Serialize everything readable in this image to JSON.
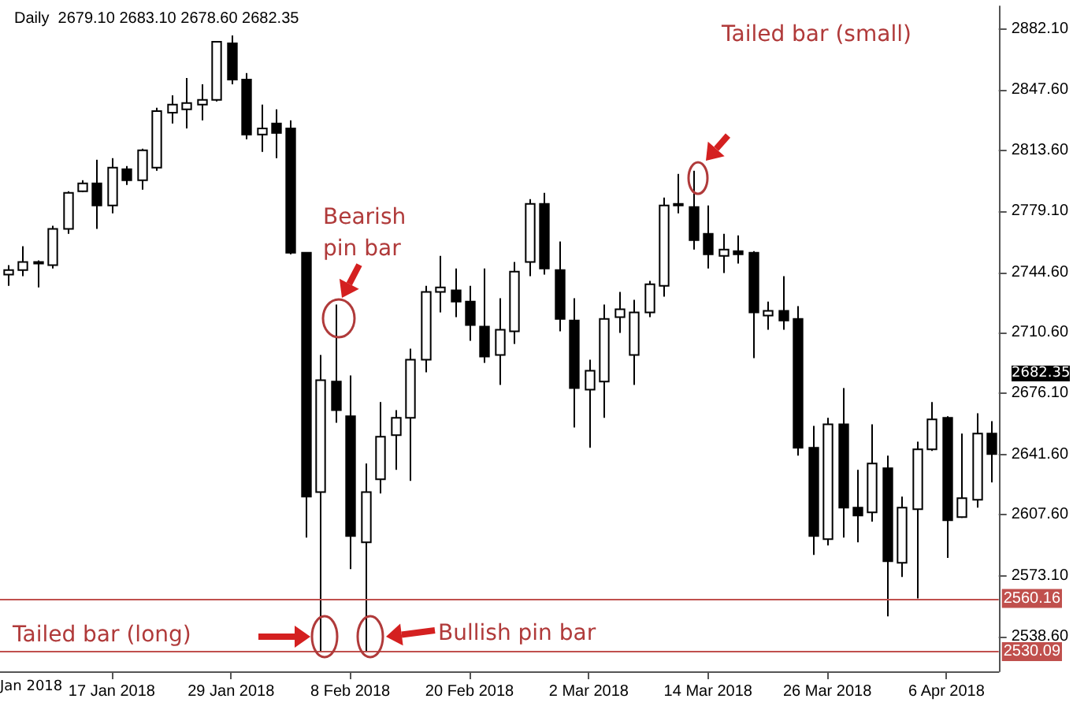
{
  "chart_data": {
    "type": "candlestick",
    "title": "Daily  2679.10 2683.10 2678.60 2682.35",
    "categories": [
      null,
      null,
      null,
      null,
      null,
      null,
      null,
      "17 Jan 2018",
      null,
      null,
      null,
      null,
      null,
      null,
      null,
      "29 Jan 2018",
      null,
      null,
      null,
      null,
      null,
      null,
      null,
      "8 Feb 2018",
      null,
      null,
      null,
      null,
      null,
      null,
      null,
      "20 Feb 2018",
      null,
      null,
      null,
      null,
      null,
      null,
      null,
      "2 Mar 2018",
      null,
      null,
      null,
      null,
      null,
      null,
      null,
      "14 Mar 2018",
      null,
      null,
      null,
      null,
      null,
      null,
      null,
      "26 Mar 2018",
      null,
      null,
      null,
      null,
      null,
      null,
      null,
      "6 Apr 2018",
      null,
      null,
      null
    ],
    "ohlc": [
      [
        2743.3,
        2748.6,
        2737.0,
        2745.9
      ],
      [
        2745.9,
        2759.3,
        2742.4,
        2750.4
      ],
      [
        2749.5,
        2751.3,
        2736.1,
        2750.4
      ],
      [
        2748.6,
        2770.9,
        2746.8,
        2769.1
      ],
      [
        2769.1,
        2790.4,
        2766.4,
        2789.5
      ],
      [
        2790.4,
        2796.7,
        2790.0,
        2794.9
      ],
      [
        2794.9,
        2808.2,
        2769.1,
        2782.4
      ],
      [
        2782.4,
        2809.1,
        2778.0,
        2803.8
      ],
      [
        2802.9,
        2804.7,
        2794.0,
        2796.7
      ],
      [
        2796.7,
        2814.5,
        2791.3,
        2813.6
      ],
      [
        2803.8,
        2837.6,
        2802.0,
        2835.8
      ],
      [
        2834.9,
        2844.7,
        2828.7,
        2839.4
      ],
      [
        2836.7,
        2854.5,
        2826.0,
        2840.3
      ],
      [
        2839.4,
        2850.9,
        2830.5,
        2842.1
      ],
      [
        2842.1,
        2875.4,
        2841.2,
        2875.0
      ],
      [
        2874.1,
        2878.5,
        2850.9,
        2853.6
      ],
      [
        2853.6,
        2857.2,
        2819.8,
        2822.5
      ],
      [
        2822.5,
        2839.4,
        2812.7,
        2826.0
      ],
      [
        2828.7,
        2836.7,
        2809.1,
        2823.4
      ],
      [
        2826.0,
        2830.5,
        2754.8,
        2755.7
      ],
      [
        2755.7,
        2755.7,
        2594.6,
        2617.8
      ],
      [
        2620.4,
        2697.9,
        2530.1,
        2683.6
      ],
      [
        2682.8,
        2726.4,
        2659.6,
        2666.7
      ],
      [
        2663.2,
        2686.3,
        2576.8,
        2595.5
      ],
      [
        2591.9,
        2636.5,
        2530.1,
        2620.4
      ],
      [
        2627.6,
        2671.2,
        2619.6,
        2651.6
      ],
      [
        2652.5,
        2666.7,
        2632.9,
        2662.3
      ],
      [
        2662.3,
        2701.4,
        2626.7,
        2695.2
      ],
      [
        2695.2,
        2737.0,
        2688.1,
        2733.5
      ],
      [
        2733.5,
        2753.9,
        2721.9,
        2736.1
      ],
      [
        2734.4,
        2746.8,
        2719.2,
        2728.1
      ],
      [
        2728.1,
        2737.0,
        2705.9,
        2714.8
      ],
      [
        2713.9,
        2746.8,
        2693.4,
        2697.0
      ],
      [
        2697.9,
        2729.9,
        2680.9,
        2712.1
      ],
      [
        2711.2,
        2750.4,
        2704.1,
        2745.0
      ],
      [
        2750.4,
        2786.0,
        2742.4,
        2783.3
      ],
      [
        2783.3,
        2789.5,
        2743.3,
        2746.8
      ],
      [
        2745.9,
        2762.0,
        2711.2,
        2718.3
      ],
      [
        2717.4,
        2729.9,
        2656.9,
        2679.2
      ],
      [
        2678.3,
        2695.2,
        2645.4,
        2689.0
      ],
      [
        2682.8,
        2726.4,
        2662.3,
        2718.3
      ],
      [
        2719.2,
        2733.5,
        2710.3,
        2723.7
      ],
      [
        2697.9,
        2729.0,
        2680.9,
        2721.9
      ],
      [
        2721.9,
        2739.7,
        2719.2,
        2737.9
      ],
      [
        2737.0,
        2786.9,
        2730.8,
        2782.4
      ],
      [
        2783.3,
        2800.2,
        2778.0,
        2782.4
      ],
      [
        2781.5,
        2802.0,
        2757.5,
        2762.8
      ],
      [
        2766.4,
        2782.4,
        2746.8,
        2754.8
      ],
      [
        2753.9,
        2766.4,
        2744.2,
        2757.5
      ],
      [
        2756.6,
        2765.5,
        2749.5,
        2754.8
      ],
      [
        2755.7,
        2756.6,
        2696.1,
        2721.9
      ],
      [
        2720.1,
        2728.1,
        2712.1,
        2722.8
      ],
      [
        2722.8,
        2742.4,
        2712.1,
        2717.4
      ],
      [
        2718.3,
        2725.5,
        2640.9,
        2645.4
      ],
      [
        2645.4,
        2657.8,
        2584.8,
        2595.5
      ],
      [
        2593.7,
        2662.3,
        2590.2,
        2658.7
      ],
      [
        2658.7,
        2679.2,
        2594.6,
        2611.5
      ],
      [
        2611.5,
        2632.9,
        2591.9,
        2607.1
      ],
      [
        2608.9,
        2658.7,
        2603.6,
        2636.5
      ],
      [
        2633.8,
        2640.9,
        2550.1,
        2581.3
      ],
      [
        2580.4,
        2617.8,
        2572.4,
        2611.5
      ],
      [
        2610.7,
        2648.9,
        2560.2,
        2644.5
      ],
      [
        2644.5,
        2671.2,
        2643.6,
        2661.4
      ],
      [
        2662.3,
        2663.2,
        2583.1,
        2604.4
      ],
      [
        2606.2,
        2653.4,
        2605.8,
        2616.9
      ],
      [
        2616.0,
        2664.9,
        2611.5,
        2653.4
      ],
      [
        2653.4,
        2660.5,
        2625.8,
        2641.8
      ]
    ],
    "ylim": [
      2519,
      2895
    ],
    "yticks": [
      {
        "value": 2882.1,
        "label": "2882.10"
      },
      {
        "value": 2847.6,
        "label": "2847.60"
      },
      {
        "value": 2813.6,
        "label": "2813.60"
      },
      {
        "value": 2779.1,
        "label": "2779.10"
      },
      {
        "value": 2744.6,
        "label": "2744.60"
      },
      {
        "value": 2710.6,
        "label": "2710.60"
      },
      {
        "value": 2676.1,
        "label": "2676.10"
      },
      {
        "value": 2641.6,
        "label": "2641.60"
      },
      {
        "value": 2607.6,
        "label": "2607.60"
      },
      {
        "value": 2573.1,
        "label": "2573.10"
      },
      {
        "value": 2538.6,
        "label": "2538.60"
      }
    ],
    "ref_lines": [
      {
        "axis": "y",
        "value": 2560.16,
        "label": "2560.16",
        "color": "#c0504d"
      },
      {
        "axis": "y",
        "value": 2530.09,
        "label": "2530.09",
        "color": "#c0504d"
      }
    ],
    "annotations": [
      "Bearish\npin bar",
      "Tailed bar (small)",
      "Tailed bar (long)",
      "Bullish pin bar",
      "2682.35",
      "Jan 2018"
    ],
    "grid": false
  }
}
